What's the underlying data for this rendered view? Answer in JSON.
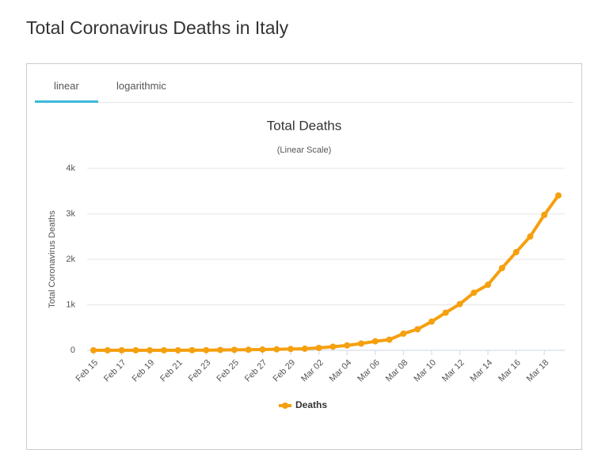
{
  "page_title": "Total Coronavirus Deaths in Italy",
  "tabs": [
    "linear",
    "logarithmic"
  ],
  "chart_data": {
    "type": "line",
    "title": "Total Deaths",
    "subtitle": "(Linear Scale)",
    "y_label": "Total Coronavirus Deaths",
    "categories": [
      "Feb 15",
      null,
      "Feb 17",
      null,
      "Feb 19",
      null,
      "Feb 21",
      null,
      "Feb 23",
      null,
      "Feb 25",
      null,
      "Feb 27",
      null,
      "Feb 29",
      null,
      "Mar 02",
      null,
      "Mar 04",
      null,
      "Mar 06",
      null,
      "Mar 08",
      null,
      "Mar 10",
      null,
      "Mar 12",
      null,
      "Mar 14",
      null,
      "Mar 16",
      null,
      "Mar 18",
      null
    ],
    "series": [
      {
        "name": "Deaths",
        "color": "#f5a00f",
        "values": [
          0,
          0,
          0,
          0,
          0,
          0,
          1,
          2,
          3,
          7,
          10,
          12,
          17,
          21,
          29,
          34,
          52,
          79,
          107,
          148,
          197,
          233,
          366,
          463,
          631,
          827,
          1016,
          1266,
          1441,
          1809,
          2158,
          2503,
          2978,
          3405
        ]
      }
    ],
    "ylim": [
      0,
      4000
    ],
    "yticks": [
      0,
      {
        "value": 1000,
        "label": "1k"
      },
      {
        "value": 2000,
        "label": "2k"
      },
      {
        "value": 3000,
        "label": "3k"
      },
      {
        "value": 4000,
        "label": "4k"
      }
    ],
    "grid": true,
    "legend": "bottom"
  }
}
